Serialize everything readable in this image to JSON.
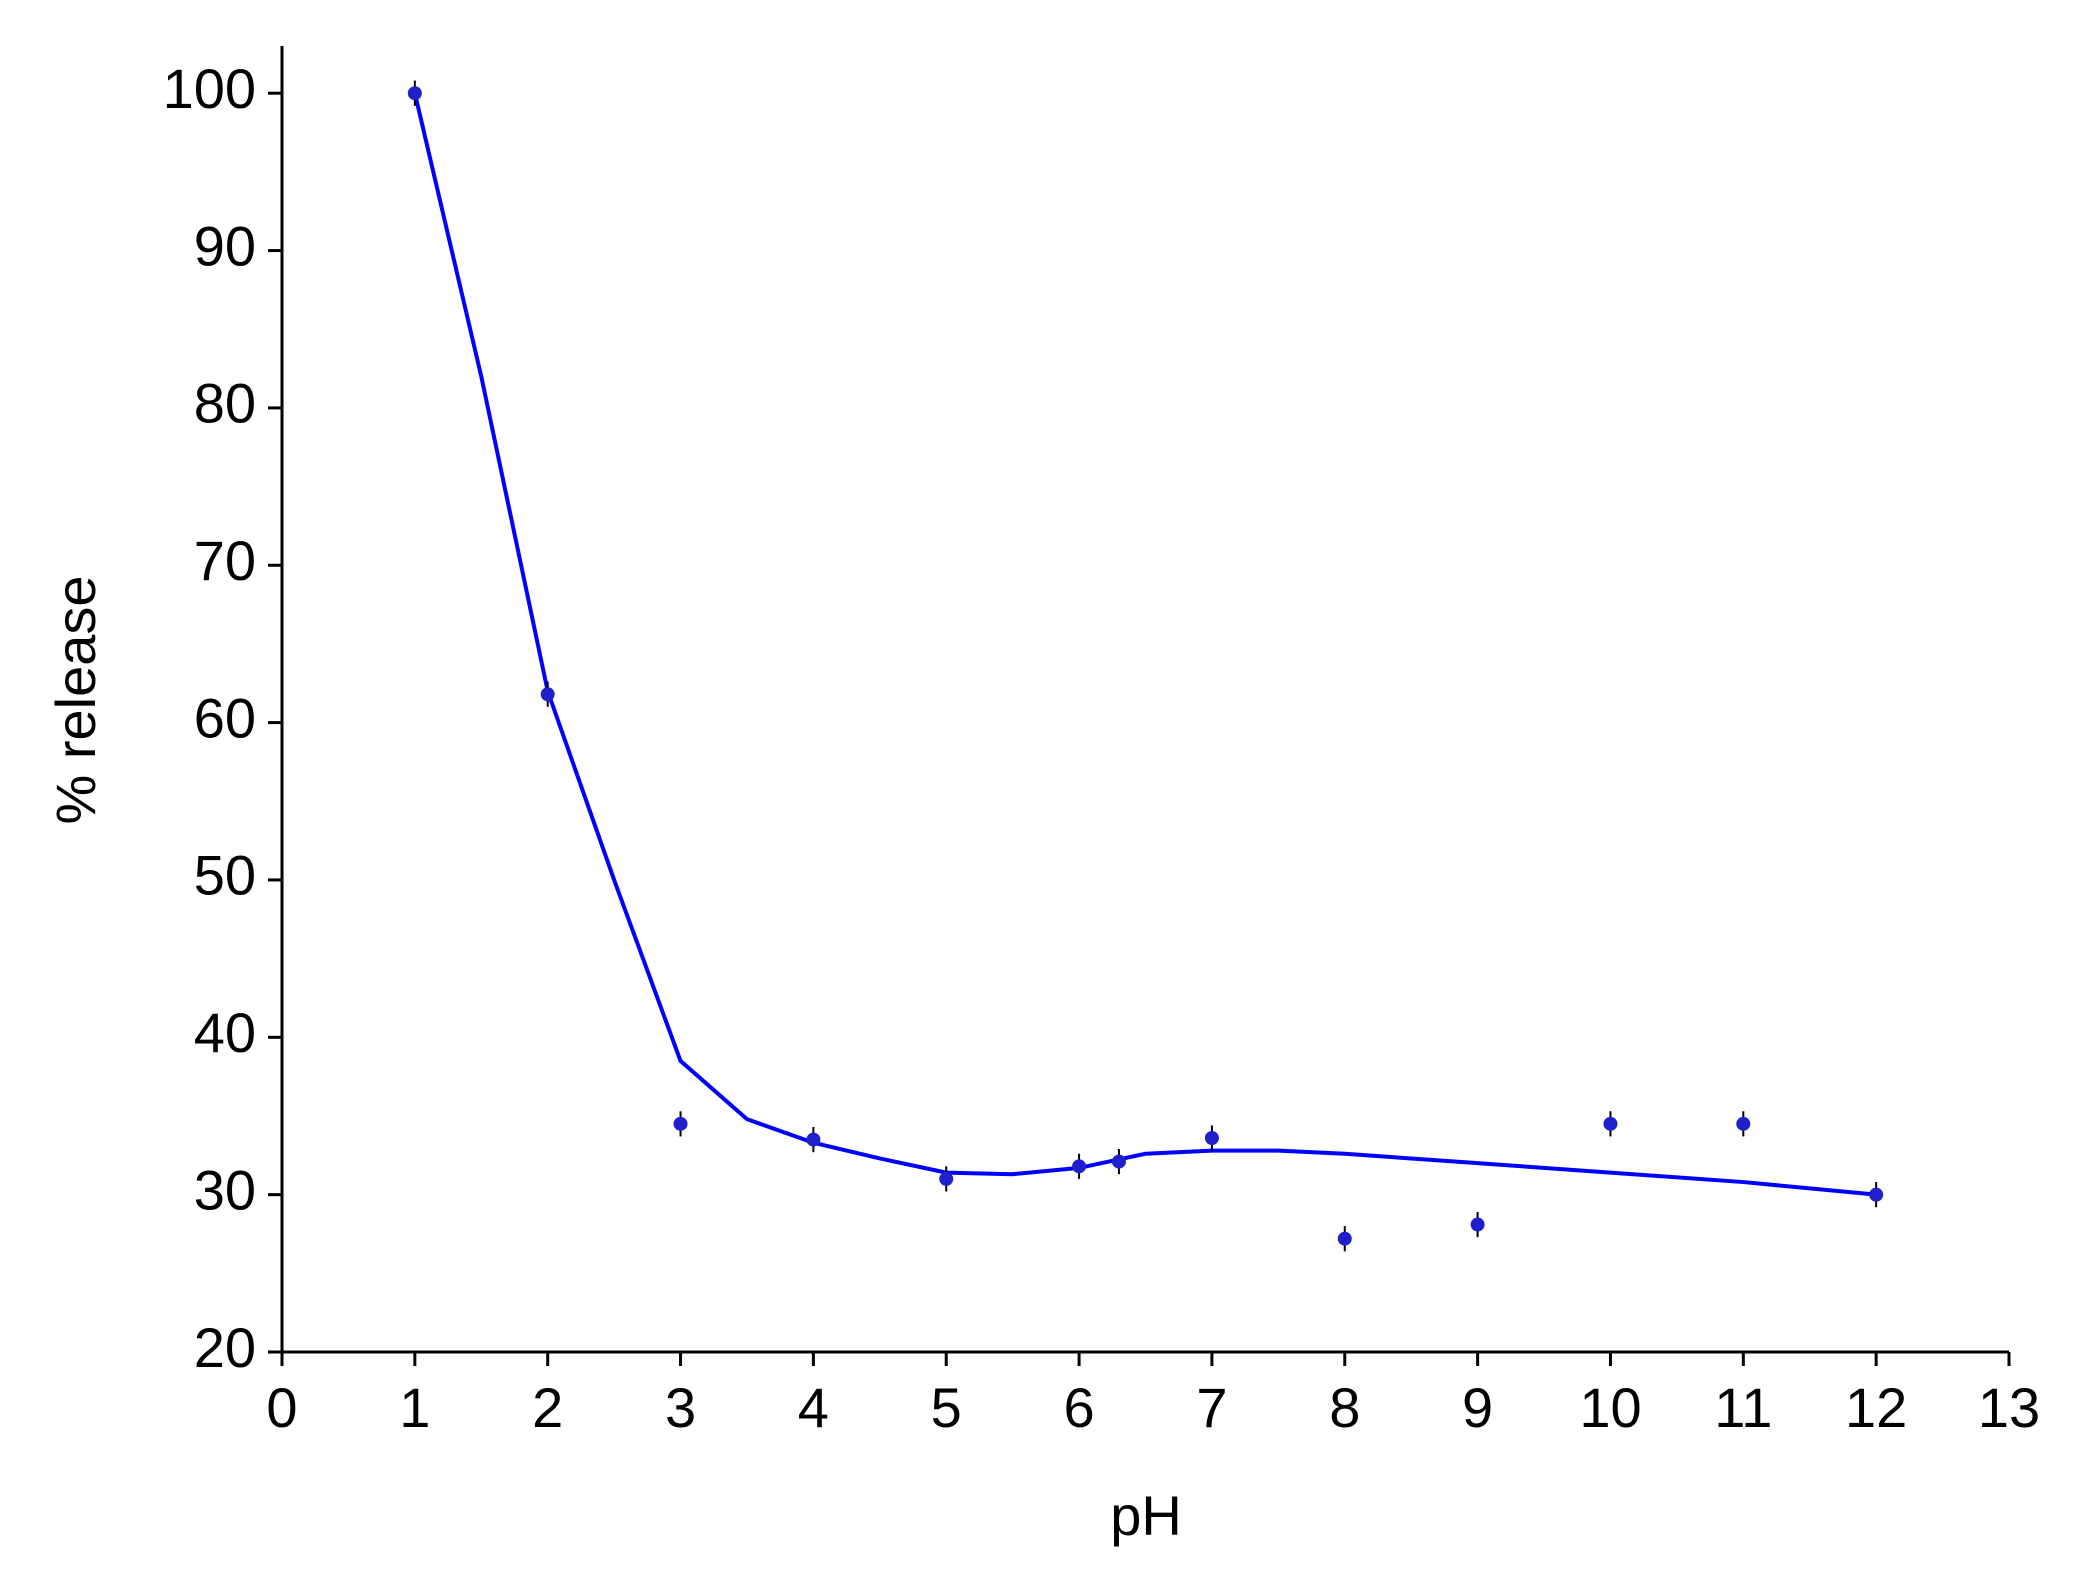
{
  "chart_data": {
    "type": "scatter",
    "x_label": "pH",
    "y_label": "% release",
    "x": [
      1,
      2,
      3,
      4,
      5,
      6,
      6.3,
      7,
      8,
      9,
      10,
      11,
      12
    ],
    "values": [
      100,
      61.8,
      34.5,
      33.5,
      31,
      31.8,
      32.1,
      33.6,
      27.2,
      28.1,
      34.5,
      34.5,
      30
    ],
    "errors": [
      0.8,
      0.8,
      0.8,
      0.8,
      0.8,
      0.8,
      0.8,
      0.8,
      0.8,
      0.8,
      0.8,
      0.8,
      0.8
    ],
    "color": "#1f1fcc",
    "error_color": "#000000",
    "fit": {
      "x": [
        1,
        1.5,
        2,
        2.5,
        3,
        3.5,
        4,
        4.5,
        5,
        5.5,
        6,
        6.5,
        7,
        7.5,
        8,
        9,
        10,
        11,
        12
      ],
      "values": [
        100,
        82,
        62,
        50,
        38.5,
        34.8,
        33.3,
        32.3,
        31.4,
        31.3,
        31.7,
        32.6,
        32.8,
        32.8,
        32.6,
        32,
        31.4,
        30.8,
        30
      ],
      "color": "#0000ff"
    },
    "xlim": [
      0,
      13
    ],
    "ylim": [
      20,
      103
    ],
    "xticks": [
      0,
      1,
      2,
      3,
      4,
      5,
      6,
      7,
      8,
      9,
      10,
      11,
      12,
      13
    ],
    "yticks": [
      20,
      30,
      40,
      50,
      60,
      70,
      80,
      90,
      100
    ]
  }
}
